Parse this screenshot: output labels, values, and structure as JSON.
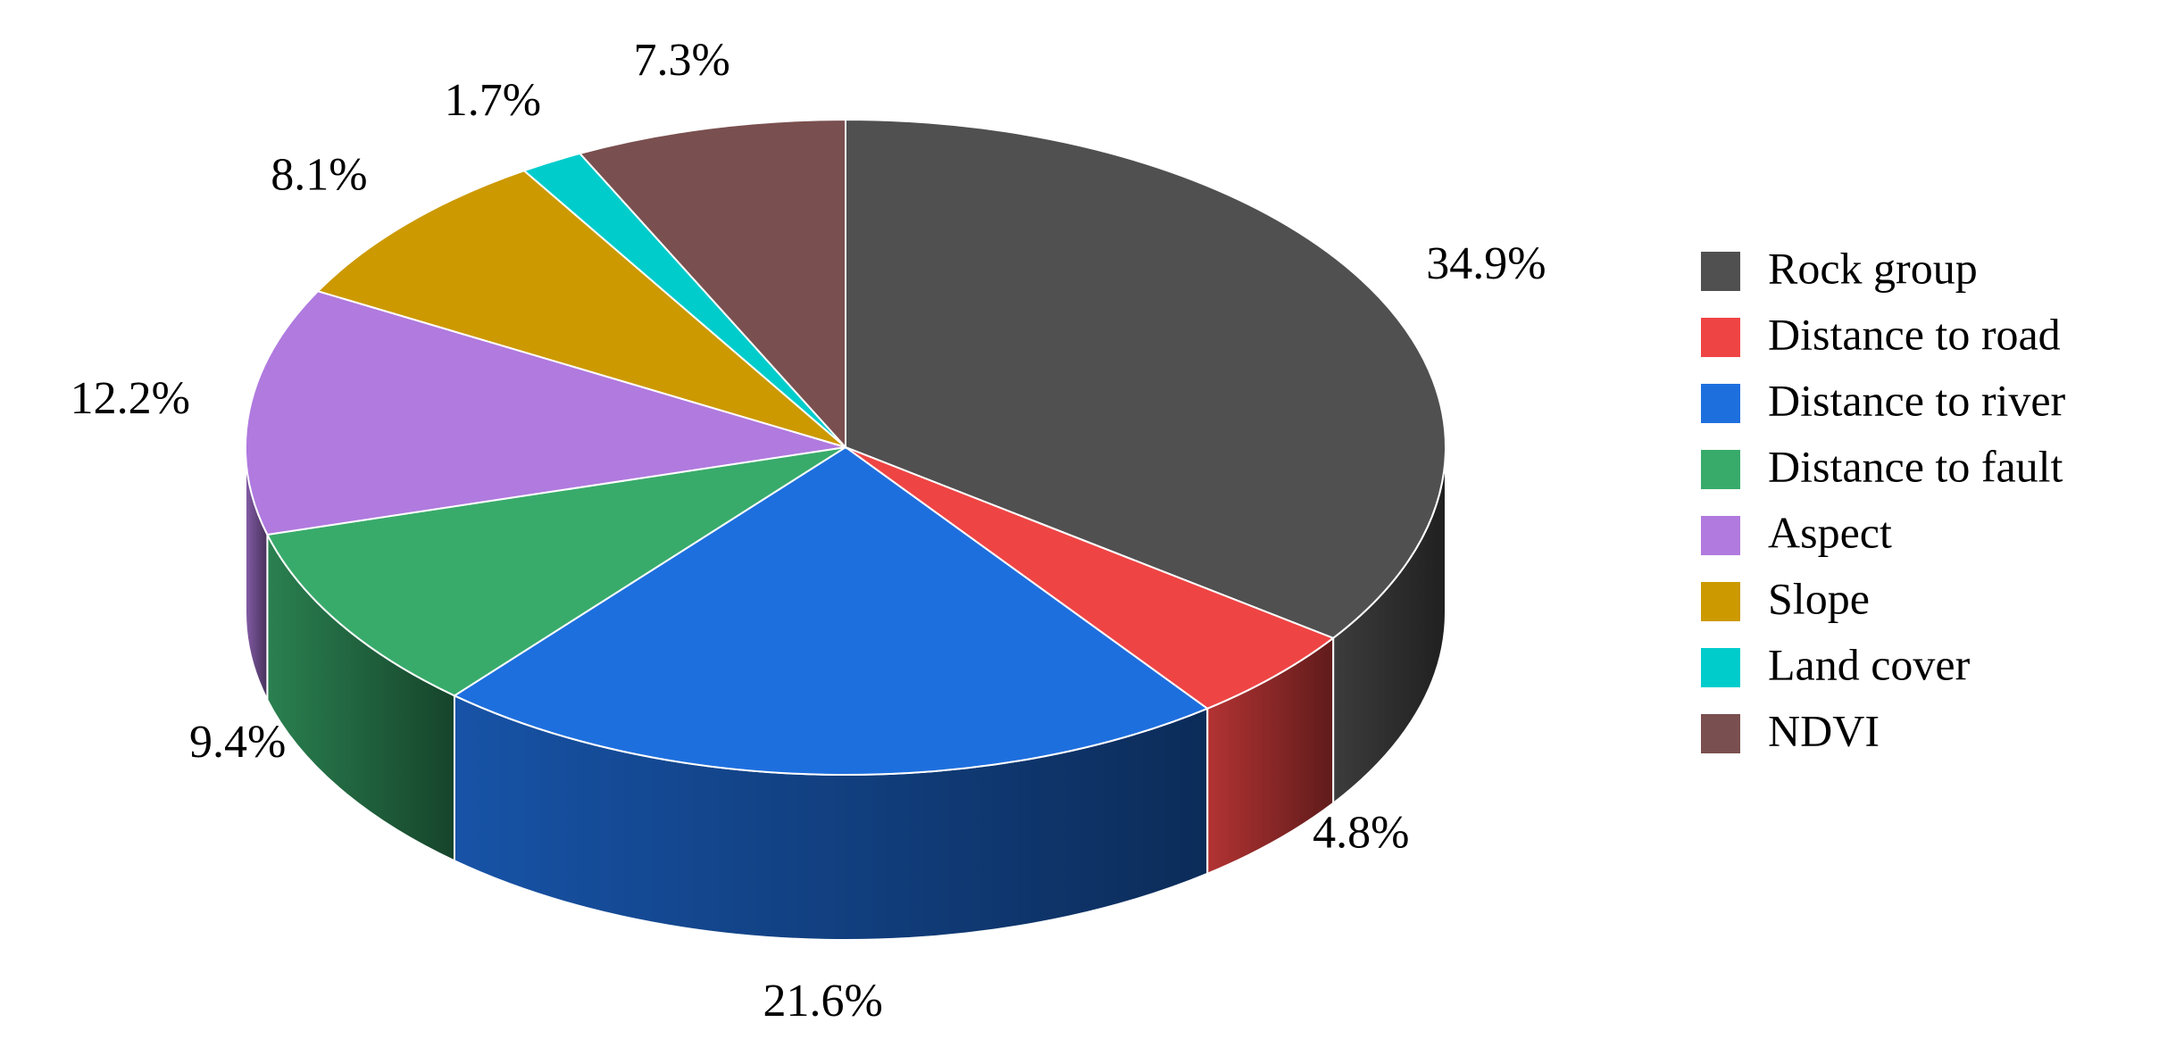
{
  "chart_data": {
    "type": "pie3d",
    "categories": [
      "Rock group",
      "Distance to road",
      "Distance to river",
      "Distance to fault",
      "Aspect",
      "Slope",
      "Land cover",
      "NDVI"
    ],
    "values": [
      34.9,
      4.8,
      21.6,
      9.4,
      12.2,
      8.1,
      1.7,
      7.3
    ],
    "value_labels": [
      "34.9%",
      "4.8%",
      "21.6%",
      "9.4%",
      "12.2%",
      "8.1%",
      "1.7%",
      "7.3%"
    ],
    "colors": [
      "#505050",
      "#ef4444",
      "#1e6fde",
      "#38ab6b",
      "#b07adf",
      "#cc9900",
      "#00cccc",
      "#7a4f4f"
    ],
    "legend": "right"
  }
}
